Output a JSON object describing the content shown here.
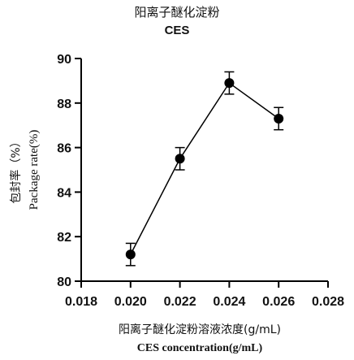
{
  "chart_data": {
    "type": "line",
    "title": "阳离子醚化淀粉",
    "subtitle": "CES",
    "xlabel": "阳离子醚化淀粉溶液浓度(g/mL)",
    "xlabel_en": "CES concentration(g/mL)",
    "ylabel": "包封率（%）",
    "ylabel_en": "Package rate(%)",
    "xlim": [
      0.018,
      0.028
    ],
    "ylim": [
      80,
      90
    ],
    "xticks": [
      "0.018",
      "0.020",
      "0.022",
      "0.024",
      "0.026",
      "0.028"
    ],
    "yticks": [
      "80",
      "82",
      "84",
      "86",
      "88",
      "90"
    ],
    "grid": false,
    "series": [
      {
        "x": [
          0.02,
          0.022,
          0.024,
          0.026
        ],
        "y": [
          81.2,
          85.5,
          88.9,
          87.3
        ],
        "err": [
          0.5,
          0.5,
          0.5,
          0.5
        ]
      }
    ]
  }
}
